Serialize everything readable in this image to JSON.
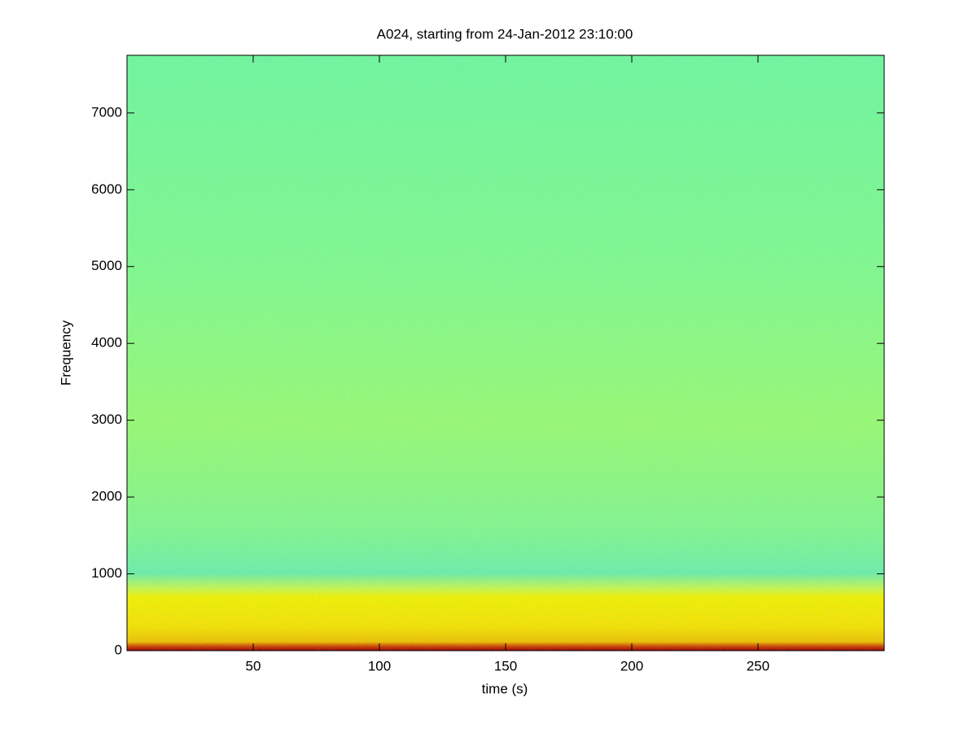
{
  "chart_data": {
    "type": "spectrogram",
    "title": "A024, starting from 24-Jan-2012 23:10:00",
    "x_label": "time (s)",
    "y_label": "Frequency",
    "xlim": [
      0,
      300
    ],
    "xticks": [
      50,
      100,
      150,
      200,
      250
    ],
    "ylim": [
      0,
      7750
    ],
    "yticks": [
      0,
      1000,
      2000,
      3000,
      4000,
      5000,
      6000,
      7000
    ],
    "colormap": "jet",
    "grid": false
  }
}
